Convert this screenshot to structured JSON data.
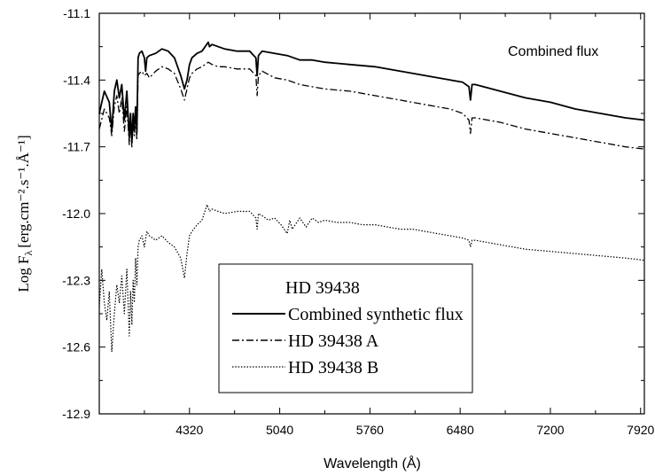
{
  "chart_data": {
    "type": "line",
    "title": "",
    "annotation": "Combined flux",
    "xlabel": "Wavelength (Å)",
    "ylabel": "Log F",
    "ylabel_subscript": "λ",
    "ylabel_units": "[erg.cm⁻².s⁻¹.Å⁻¹]",
    "xlim": [
      3600,
      7950
    ],
    "ylim": [
      -12.9,
      -11.1
    ],
    "xticks": [
      4320,
      5040,
      5760,
      6480,
      7200,
      7920
    ],
    "xtick_labels": [
      "4320",
      "5040",
      "5760",
      "6480",
      "7200",
      "7920"
    ],
    "yticks": [
      -11.1,
      -11.4,
      -11.7,
      -12.0,
      -12.3,
      -12.6,
      -12.9
    ],
    "ytick_labels": [
      "-11.1",
      "-11.4",
      "-11.7",
      "-12.0",
      "-12.3",
      "-12.6",
      "-12.9"
    ],
    "legend": {
      "title": "HD 39438",
      "placement": "lower-center"
    },
    "series": [
      {
        "name": "Combined synthetic flux",
        "style": "solid",
        "color": "#000000",
        "x": [
          3600,
          3640,
          3680,
          3700,
          3720,
          3740,
          3760,
          3780,
          3800,
          3820,
          3840,
          3850,
          3860,
          3870,
          3880,
          3890,
          3900,
          3910,
          3920,
          3940,
          3960,
          3970,
          3980,
          4000,
          4050,
          4100,
          4150,
          4200,
          4250,
          4280,
          4300,
          4320,
          4340,
          4380,
          4420,
          4470,
          4480,
          4500,
          4550,
          4600,
          4700,
          4800,
          4850,
          4860,
          4870,
          4900,
          5000,
          5100,
          5200,
          5300,
          5400,
          5600,
          5800,
          6000,
          6200,
          6400,
          6500,
          6550,
          6562,
          6575,
          6600,
          6800,
          7000,
          7200,
          7400,
          7600,
          7800,
          7950
        ],
        "y": [
          -11.55,
          -11.45,
          -11.5,
          -11.63,
          -11.45,
          -11.4,
          -11.48,
          -11.42,
          -11.58,
          -11.45,
          -11.66,
          -11.55,
          -11.68,
          -11.55,
          -11.62,
          -11.52,
          -11.63,
          -11.3,
          -11.28,
          -11.27,
          -11.3,
          -11.36,
          -11.3,
          -11.29,
          -11.28,
          -11.26,
          -11.27,
          -11.3,
          -11.38,
          -11.44,
          -11.4,
          -11.33,
          -11.3,
          -11.28,
          -11.27,
          -11.23,
          -11.25,
          -11.24,
          -11.25,
          -11.26,
          -11.27,
          -11.27,
          -11.3,
          -11.38,
          -11.29,
          -11.27,
          -11.28,
          -11.29,
          -11.31,
          -11.31,
          -11.32,
          -11.33,
          -11.34,
          -11.36,
          -11.38,
          -11.4,
          -11.41,
          -11.43,
          -11.49,
          -11.42,
          -11.42,
          -11.45,
          -11.48,
          -11.5,
          -11.53,
          -11.55,
          -11.57,
          -11.58
        ]
      },
      {
        "name": "HD 39438 A",
        "style": "dashdot",
        "color": "#000000",
        "x": [
          3600,
          3640,
          3680,
          3700,
          3720,
          3740,
          3760,
          3780,
          3800,
          3820,
          3840,
          3850,
          3860,
          3870,
          3880,
          3890,
          3900,
          3910,
          3920,
          3940,
          3960,
          3980,
          4000,
          4050,
          4100,
          4150,
          4200,
          4250,
          4280,
          4300,
          4320,
          4340,
          4380,
          4420,
          4470,
          4500,
          4550,
          4600,
          4700,
          4800,
          4850,
          4860,
          4870,
          4900,
          5000,
          5100,
          5200,
          5300,
          5400,
          5600,
          5800,
          6000,
          6200,
          6400,
          6500,
          6550,
          6562,
          6575,
          6600,
          6800,
          7000,
          7200,
          7400,
          7600,
          7800,
          7950
        ],
        "y": [
          -11.62,
          -11.53,
          -11.57,
          -11.65,
          -11.52,
          -11.47,
          -11.55,
          -11.48,
          -11.63,
          -11.52,
          -11.69,
          -11.6,
          -11.7,
          -11.6,
          -11.65,
          -11.57,
          -11.67,
          -11.38,
          -11.37,
          -11.36,
          -11.38,
          -11.37,
          -11.39,
          -11.36,
          -11.34,
          -11.35,
          -11.37,
          -11.44,
          -11.49,
          -11.44,
          -11.39,
          -11.37,
          -11.35,
          -11.34,
          -11.32,
          -11.33,
          -11.34,
          -11.34,
          -11.35,
          -11.35,
          -11.38,
          -11.47,
          -11.38,
          -11.36,
          -11.39,
          -11.4,
          -11.42,
          -11.43,
          -11.44,
          -11.45,
          -11.47,
          -11.49,
          -11.51,
          -11.53,
          -11.55,
          -11.58,
          -11.64,
          -11.57,
          -11.57,
          -11.59,
          -11.62,
          -11.64,
          -11.66,
          -11.68,
          -11.7,
          -11.71
        ]
      },
      {
        "name": "HD 39438 B",
        "style": "dotted",
        "color": "#000000",
        "x": [
          3600,
          3620,
          3640,
          3660,
          3680,
          3700,
          3720,
          3740,
          3760,
          3780,
          3800,
          3820,
          3840,
          3850,
          3860,
          3870,
          3880,
          3890,
          3900,
          3910,
          3920,
          3940,
          3960,
          3980,
          4000,
          4050,
          4100,
          4150,
          4200,
          4250,
          4280,
          4300,
          4320,
          4340,
          4380,
          4420,
          4460,
          4480,
          4500,
          4550,
          4600,
          4700,
          4800,
          4850,
          4860,
          4870,
          4900,
          4950,
          5000,
          5050,
          5100,
          5120,
          5140,
          5200,
          5250,
          5300,
          5350,
          5400,
          5500,
          5600,
          5700,
          5800,
          5900,
          6000,
          6100,
          6200,
          6300,
          6400,
          6500,
          6550,
          6562,
          6575,
          6600,
          6800,
          7000,
          7200,
          7400,
          7600,
          7800,
          7950
        ],
        "y": [
          -12.42,
          -12.25,
          -12.4,
          -12.48,
          -12.35,
          -12.62,
          -12.45,
          -12.32,
          -12.4,
          -12.28,
          -12.45,
          -12.25,
          -12.55,
          -12.35,
          -12.5,
          -12.3,
          -12.4,
          -12.2,
          -12.32,
          -12.15,
          -12.12,
          -12.1,
          -12.15,
          -12.08,
          -12.1,
          -12.12,
          -12.1,
          -12.13,
          -12.15,
          -12.2,
          -12.29,
          -12.18,
          -12.1,
          -12.08,
          -12.05,
          -12.03,
          -11.96,
          -11.99,
          -11.98,
          -11.99,
          -12.0,
          -11.99,
          -11.99,
          -12.02,
          -12.07,
          -12.0,
          -12.01,
          -12.03,
          -12.02,
          -12.05,
          -12.09,
          -12.03,
          -12.07,
          -12.02,
          -12.06,
          -12.02,
          -12.04,
          -12.03,
          -12.04,
          -12.04,
          -12.05,
          -12.05,
          -12.06,
          -12.07,
          -12.07,
          -12.08,
          -12.09,
          -12.1,
          -12.11,
          -12.12,
          -12.15,
          -12.12,
          -12.12,
          -12.14,
          -12.16,
          -12.17,
          -12.18,
          -12.19,
          -12.2,
          -12.21
        ]
      }
    ]
  }
}
